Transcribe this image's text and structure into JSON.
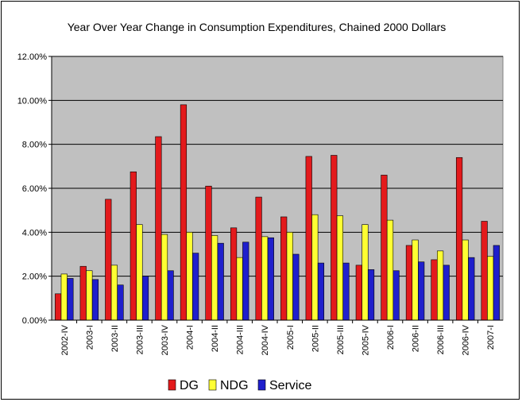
{
  "chart_data": {
    "type": "bar",
    "title": "Year Over Year Change in Consumption Expenditures, Chained 2000 Dollars",
    "xlabel": "",
    "ylabel": "",
    "ylim": [
      0,
      12
    ],
    "yticks": [
      "0.00%",
      "2.00%",
      "4.00%",
      "6.00%",
      "8.00%",
      "10.00%",
      "12.00%"
    ],
    "grid": true,
    "legend_position": "bottom",
    "categories": [
      "2002-IV",
      "2003-I",
      "2003-II",
      "2003-III",
      "2003-IV",
      "2004-I",
      "2004-II",
      "2004-III",
      "2004-IV",
      "2005-I",
      "2005-II",
      "2005-III",
      "2005-IV",
      "2006-I",
      "2006-II",
      "2006-III",
      "2006-IV",
      "2007-I"
    ],
    "series": [
      {
        "name": "DG",
        "color": "#e31a1c",
        "values": [
          1.2,
          2.45,
          5.5,
          6.75,
          8.35,
          9.8,
          6.1,
          4.2,
          5.6,
          4.7,
          7.45,
          7.5,
          2.5,
          6.6,
          3.4,
          2.75,
          7.4,
          4.5
        ]
      },
      {
        "name": "NDG",
        "color": "#ffff33",
        "values": [
          2.1,
          2.25,
          2.5,
          4.35,
          3.9,
          4.0,
          3.85,
          2.85,
          3.8,
          4.0,
          4.8,
          4.75,
          4.35,
          4.55,
          3.65,
          3.15,
          3.65,
          2.9
        ]
      },
      {
        "name": "Service",
        "color": "#1f1fcc",
        "values": [
          1.9,
          1.85,
          1.6,
          2.0,
          2.25,
          3.05,
          3.5,
          3.55,
          3.75,
          3.0,
          2.6,
          2.6,
          2.3,
          2.25,
          2.65,
          2.5,
          2.85,
          3.4
        ]
      }
    ],
    "plot_background": "#c0c0c0"
  }
}
